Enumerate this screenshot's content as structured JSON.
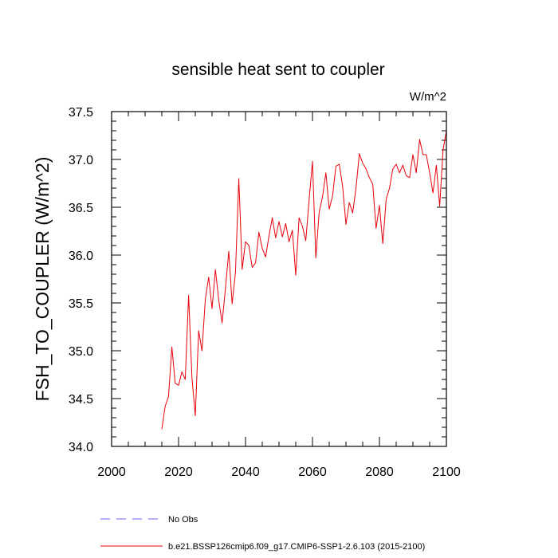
{
  "chart_data": {
    "type": "line",
    "title": "sensible heat sent to coupler",
    "units": "W/m^2",
    "ylabel": "FSH_TO_COUPLER  (W/m^2)",
    "xlabel": "",
    "xlim": [
      2000,
      2100
    ],
    "ylim": [
      34.0,
      37.5
    ],
    "x_ticks": [
      2000,
      2020,
      2040,
      2060,
      2080,
      2100
    ],
    "y_ticks": [
      "34.0",
      "34.5",
      "35.0",
      "35.5",
      "36.0",
      "36.5",
      "37.0",
      "37.5"
    ],
    "legend_position": "bottom-left",
    "series": [
      {
        "name": "No Obs",
        "style": "dashed",
        "color": "#6666ff",
        "x": [],
        "values": []
      },
      {
        "name": "b.e21.BSSP126cmip6.f09_g17.CMIP6-SSP1-2.6.103 (2015-2100)",
        "style": "solid",
        "color": "#e8000b",
        "x": [
          2015,
          2016,
          2017,
          2018,
          2019,
          2020,
          2021,
          2022,
          2023,
          2024,
          2025,
          2026,
          2027,
          2028,
          2029,
          2030,
          2031,
          2032,
          2033,
          2034,
          2035,
          2036,
          2037,
          2038,
          2039,
          2040,
          2041,
          2042,
          2043,
          2044,
          2045,
          2046,
          2047,
          2048,
          2049,
          2050,
          2051,
          2052,
          2053,
          2054,
          2055,
          2056,
          2057,
          2058,
          2059,
          2060,
          2061,
          2062,
          2063,
          2064,
          2065,
          2066,
          2067,
          2068,
          2069,
          2070,
          2071,
          2072,
          2073,
          2074,
          2075,
          2076,
          2077,
          2078,
          2079,
          2080,
          2081,
          2082,
          2083,
          2084,
          2085,
          2086,
          2087,
          2088,
          2089,
          2090,
          2091,
          2092,
          2093,
          2094,
          2095,
          2096,
          2097,
          2098,
          2099,
          2100
        ],
        "values": [
          34.18,
          34.42,
          34.52,
          35.04,
          34.66,
          34.64,
          34.78,
          34.7,
          35.58,
          34.72,
          34.32,
          35.21,
          35.0,
          35.54,
          35.77,
          35.44,
          35.85,
          35.53,
          35.29,
          35.65,
          36.04,
          35.49,
          35.82,
          36.8,
          35.85,
          36.14,
          36.1,
          35.87,
          35.92,
          36.24,
          36.07,
          35.98,
          36.2,
          36.39,
          36.18,
          36.35,
          36.19,
          36.33,
          36.14,
          36.26,
          35.79,
          36.39,
          36.3,
          36.15,
          36.58,
          36.98,
          35.97,
          36.45,
          36.61,
          36.86,
          36.48,
          36.62,
          36.93,
          36.95,
          36.72,
          36.32,
          36.55,
          36.44,
          36.7,
          37.06,
          36.96,
          36.9,
          36.81,
          36.74,
          36.28,
          36.52,
          36.12,
          36.58,
          36.7,
          36.9,
          36.95,
          36.86,
          36.94,
          36.83,
          36.81,
          37.05,
          36.86,
          37.21,
          37.05,
          37.05,
          36.86,
          36.65,
          36.94,
          36.51,
          37.1,
          37.3
        ]
      }
    ]
  }
}
